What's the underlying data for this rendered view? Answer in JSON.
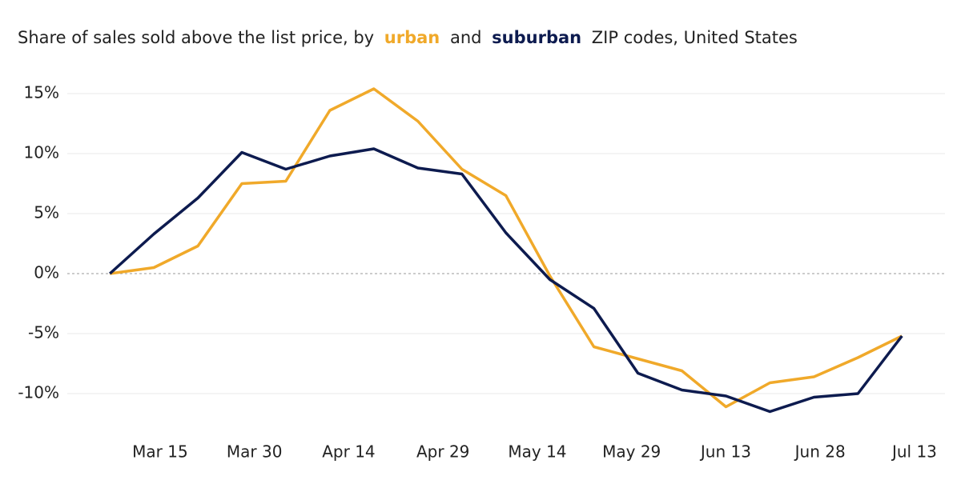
{
  "chart_data": {
    "type": "line",
    "title_parts": [
      "Share of sales sold above the list price, by",
      "and",
      "ZIP codes, United States"
    ],
    "x": [
      7,
      14,
      21,
      28,
      35,
      42,
      49,
      56,
      63,
      70,
      77,
      84,
      91,
      98,
      105,
      112,
      119,
      126,
      133
    ],
    "series": [
      {
        "name": "urban",
        "color": "#f0a92a",
        "values": [
          0,
          0.5,
          2.3,
          7.5,
          7.7,
          13.6,
          15.4,
          12.7,
          8.7,
          6.5,
          -0.2,
          -6.1,
          -7.1,
          -8.1,
          -11.1,
          -9.1,
          -8.6,
          -7.0,
          -5.2
        ]
      },
      {
        "name": "suburban",
        "color": "#0d1b4f",
        "values": [
          0,
          3.3,
          6.3,
          10.1,
          8.7,
          9.8,
          10.4,
          8.8,
          8.3,
          3.4,
          -0.5,
          -2.9,
          -8.3,
          -9.7,
          -10.2,
          -11.5,
          -10.3,
          -10.0,
          -5.2
        ]
      }
    ],
    "xlim": [
      0,
      140
    ],
    "xticks": [
      {
        "value": 15,
        "label": "Mar 15"
      },
      {
        "value": 30,
        "label": "Mar 30"
      },
      {
        "value": 45,
        "label": "Apr 14"
      },
      {
        "value": 60,
        "label": "Apr 29"
      },
      {
        "value": 75,
        "label": "May 14"
      },
      {
        "value": 90,
        "label": "May 29"
      },
      {
        "value": 105,
        "label": "Jun 13"
      },
      {
        "value": 120,
        "label": "Jun 28"
      },
      {
        "value": 135,
        "label": "Jul 13"
      }
    ],
    "ylim": [
      -13,
      16
    ],
    "yticks": [
      {
        "value": -10,
        "label": "-10%"
      },
      {
        "value": -5,
        "label": "-5%"
      },
      {
        "value": 0,
        "label": "0%"
      },
      {
        "value": 5,
        "label": "5%"
      },
      {
        "value": 10,
        "label": "10%"
      },
      {
        "value": 15,
        "label": "15%"
      }
    ],
    "grid": true
  }
}
